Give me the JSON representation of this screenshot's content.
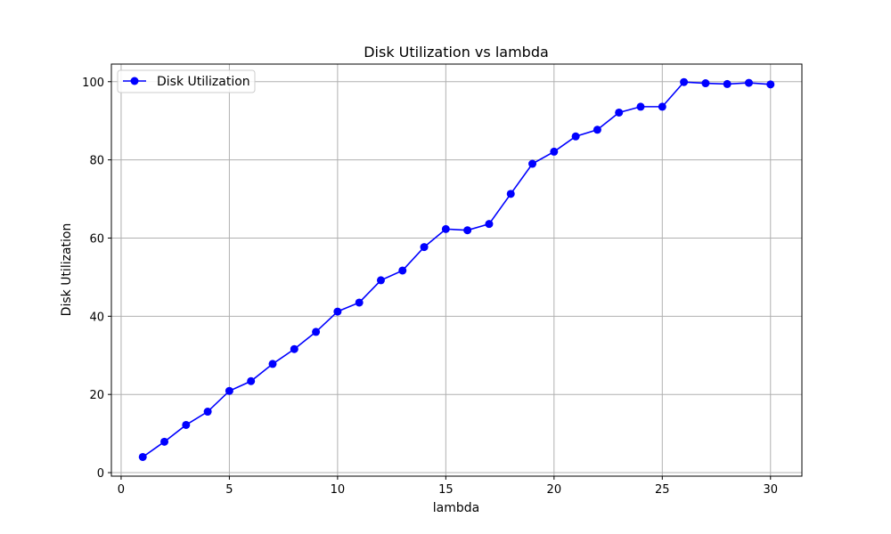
{
  "chart_data": {
    "type": "line",
    "title": "Disk Utilization vs lambda",
    "xlabel": "lambda",
    "ylabel": "Disk Utilization",
    "xlim": [
      -0.45,
      31.45
    ],
    "ylim": [
      -0.9,
      104.5
    ],
    "xticks": [
      0,
      5,
      10,
      15,
      20,
      25,
      30
    ],
    "yticks": [
      0,
      20,
      40,
      60,
      80,
      100
    ],
    "grid": true,
    "legend_position": "top-left",
    "series": [
      {
        "name": "Disk Utilization",
        "color": "#0000ff",
        "marker": "circle",
        "x": [
          1,
          2,
          3,
          4,
          5,
          6,
          7,
          8,
          9,
          10,
          11,
          12,
          13,
          14,
          15,
          16,
          17,
          18,
          19,
          20,
          21,
          22,
          23,
          24,
          25,
          26,
          27,
          28,
          29,
          30
        ],
        "y": [
          4.0,
          7.9,
          12.2,
          15.6,
          20.9,
          23.4,
          27.8,
          31.6,
          36.0,
          41.2,
          43.5,
          49.2,
          51.7,
          57.7,
          62.3,
          62.0,
          63.6,
          71.3,
          79.0,
          82.1,
          86.0,
          87.7,
          92.1,
          93.6,
          93.6,
          99.9,
          99.6,
          99.4,
          99.7,
          99.3
        ]
      }
    ]
  }
}
